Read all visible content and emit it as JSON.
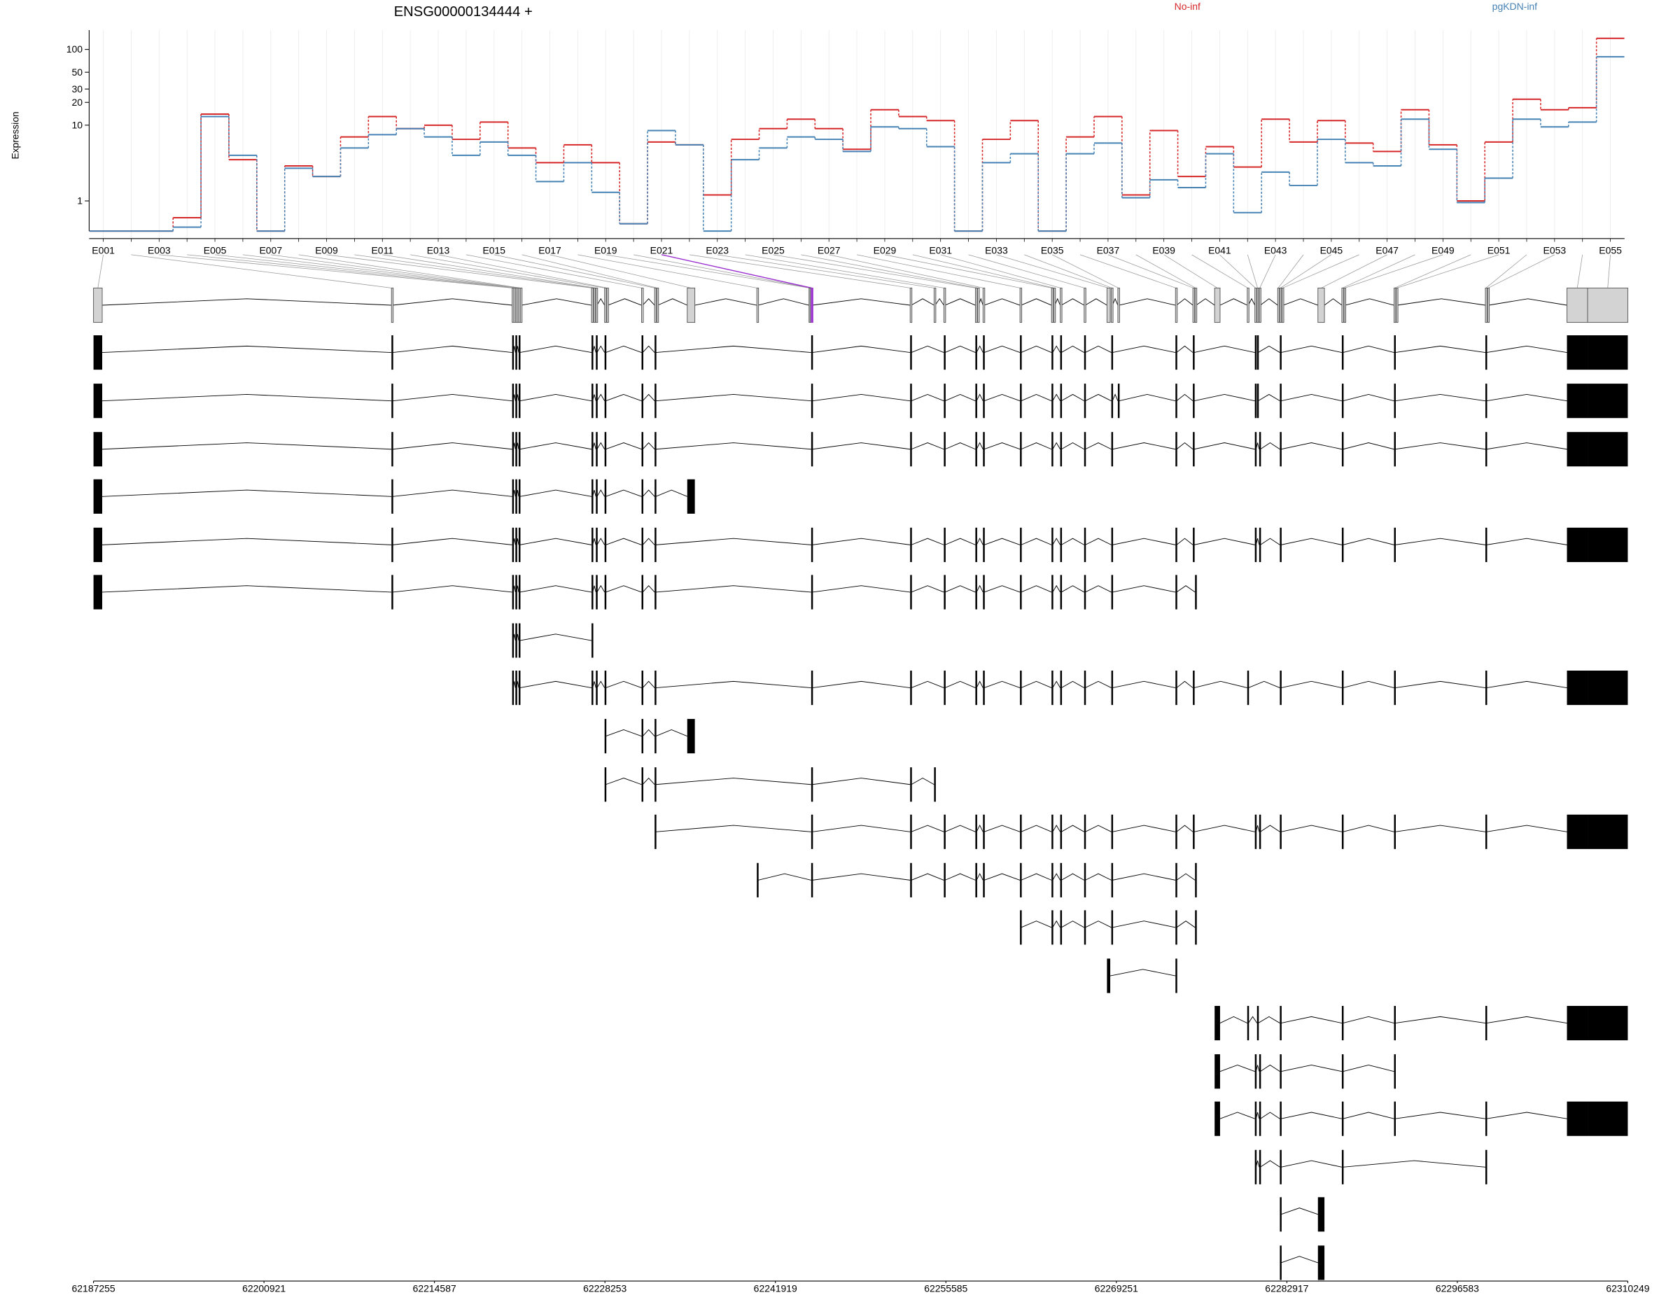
{
  "chart_data": {
    "type": "line",
    "title": "ENSG00000134444 +",
    "y_label": "Expression",
    "categories": [
      "E001",
      null,
      "E003",
      null,
      "E005",
      null,
      "E007",
      null,
      "E009",
      null,
      "E011",
      null,
      "E013",
      null,
      "E015",
      null,
      "E017",
      null,
      "E019",
      null,
      "E021",
      null,
      "E023",
      null,
      "E025",
      null,
      "E027",
      null,
      "E029",
      null,
      "E031",
      null,
      "E033",
      null,
      "E035",
      null,
      "E037",
      null,
      "E039",
      null,
      "E041",
      null,
      "E043",
      null,
      "E045",
      null,
      "E047",
      null,
      "E049",
      null,
      "E051",
      null,
      "E053",
      null,
      "E055"
    ],
    "series": [
      {
        "name": "No-inf",
        "color": "#d62728",
        "values": [
          0.4,
          0.4,
          0.4,
          0.6,
          14,
          3.5,
          0.4,
          2.9,
          2.1,
          7,
          13,
          9,
          10,
          6.5,
          11,
          5,
          3.2,
          5.5,
          3.2,
          0.5,
          6,
          5.5,
          1.2,
          6.5,
          9,
          12,
          9,
          4.8,
          16,
          13,
          11.5,
          0.4,
          6.5,
          11.5,
          0.4,
          7,
          13,
          1.2,
          8.5,
          2.1,
          5.2,
          2.8,
          12,
          6,
          11.5,
          5.8,
          4.5,
          16,
          5.5,
          1,
          6,
          22,
          16,
          17,
          140
        ]
      },
      {
        "name": "pgKDN-inf",
        "color": "#4682b4",
        "values": [
          0.4,
          0.4,
          0.4,
          0.45,
          13,
          4,
          0.4,
          2.7,
          2.1,
          5,
          7.5,
          9,
          7,
          4,
          6,
          4,
          1.8,
          3.2,
          1.3,
          0.5,
          8.5,
          5.5,
          0.4,
          3.5,
          5,
          7,
          6.5,
          4.5,
          9.5,
          9,
          5.2,
          0.4,
          3.2,
          4.2,
          0.4,
          4.2,
          5.8,
          1.1,
          1.9,
          1.5,
          4.2,
          0.7,
          2.4,
          1.6,
          6.5,
          3.2,
          2.9,
          12,
          4.8,
          0.95,
          2,
          12,
          9.5,
          11,
          80
        ]
      }
    ],
    "ylim": [
      0.4,
      180
    ],
    "yticks": [
      1,
      10,
      20,
      30,
      50,
      100
    ],
    "log_scale": true,
    "grid": true,
    "legend": "top",
    "highlight": 20,
    "highlight_color": "#9b30d0"
  },
  "gene_model": {
    "xlim": [
      62187255,
      62310249
    ],
    "xticks": [
      62187255,
      62200921,
      62214587,
      62228253,
      62241919,
      62255585,
      62269251,
      62282917,
      62296583,
      62310249
    ],
    "exon_color": "#d3d3d3",
    "transcript_color": "#000000",
    "exons": [
      [
        62187255,
        62187952
      ],
      [
        62211140,
        62211230
      ],
      [
        62220815,
        62220905
      ],
      [
        62220946,
        62221036
      ],
      [
        62221077,
        62221167
      ],
      [
        62221208,
        62221298
      ],
      [
        62221338,
        62221428
      ],
      [
        62221469,
        62221559
      ],
      [
        62227179,
        62227269
      ],
      [
        62227353,
        62227443
      ],
      [
        62227528,
        62227618
      ],
      [
        62228225,
        62228315
      ],
      [
        62228399,
        62228489
      ],
      [
        62231189,
        62231279
      ],
      [
        62232235,
        62232325
      ],
      [
        62232409,
        62232499
      ],
      [
        62234850,
        62235460
      ],
      [
        62240429,
        62240519
      ],
      [
        62244613,
        62244703
      ],
      [
        62244700,
        62244790
      ],
      [
        62244787,
        62244877
      ],
      [
        62252720,
        62252810
      ],
      [
        62254637,
        62254727
      ],
      [
        62255422,
        62255512
      ],
      [
        62257950,
        62258040
      ],
      [
        62258124,
        62258214
      ],
      [
        62258560,
        62258650
      ],
      [
        62261524,
        62261614
      ],
      [
        62264052,
        62264142
      ],
      [
        62264226,
        62264316
      ],
      [
        62264749,
        62264839
      ],
      [
        62266667,
        62266757
      ],
      [
        62268497,
        62268759
      ],
      [
        62268846,
        62268936
      ],
      [
        62269369,
        62269459
      ],
      [
        62273989,
        62274079
      ],
      [
        62275384,
        62275474
      ],
      [
        62275558,
        62275648
      ],
      [
        62277127,
        62277563
      ],
      [
        62279742,
        62279832
      ],
      [
        62280353,
        62280443
      ],
      [
        62280527,
        62280617
      ],
      [
        62280701,
        62280791
      ],
      [
        62282183,
        62282273
      ],
      [
        62282357,
        62282447
      ],
      [
        62282532,
        62282622
      ],
      [
        62285408,
        62285931
      ],
      [
        62287326,
        62287416
      ],
      [
        62287501,
        62287591
      ],
      [
        62291510,
        62291600
      ],
      [
        62291685,
        62291775
      ],
      [
        62298833,
        62298923
      ],
      [
        62299007,
        62299097
      ],
      [
        62305370,
        62307027
      ],
      [
        62307027,
        62310249
      ]
    ],
    "transcripts": [
      [
        0,
        1,
        2,
        4,
        6,
        8,
        10,
        11,
        13,
        14,
        20,
        21,
        23,
        24,
        26,
        27,
        28,
        30,
        31,
        33,
        35,
        36,
        40,
        41,
        44,
        47,
        49,
        51,
        53,
        54
      ],
      [
        0,
        1,
        2,
        4,
        6,
        8,
        10,
        11,
        13,
        14,
        20,
        21,
        23,
        24,
        26,
        27,
        28,
        30,
        31,
        33,
        34,
        35,
        36,
        40,
        41,
        44,
        47,
        49,
        51,
        53,
        54
      ],
      [
        0,
        1,
        2,
        4,
        6,
        8,
        10,
        11,
        13,
        14,
        20,
        21,
        23,
        24,
        26,
        27,
        28,
        30,
        31,
        33,
        35,
        36,
        40,
        42,
        44,
        47,
        49,
        51,
        53,
        54
      ],
      [
        0,
        1,
        2,
        4,
        6,
        8,
        10,
        11,
        13,
        14,
        16
      ],
      [
        0,
        1,
        2,
        4,
        6,
        8,
        10,
        11,
        13,
        14,
        20,
        21,
        23,
        24,
        26,
        27,
        28,
        30,
        31,
        33,
        35,
        36,
        40,
        42,
        44,
        47,
        49,
        51,
        53,
        54
      ],
      [
        0,
        1,
        2,
        4,
        6,
        8,
        10,
        11,
        13,
        14,
        20,
        21,
        23,
        24,
        26,
        27,
        28,
        30,
        31,
        33,
        35,
        37
      ],
      [
        2,
        4,
        6,
        8
      ],
      [
        2,
        4,
        6,
        8,
        10,
        11,
        13,
        14,
        20,
        21,
        23,
        24,
        26,
        27,
        28,
        30,
        31,
        33,
        35,
        36,
        39,
        44,
        47,
        49,
        51,
        53,
        54
      ],
      [
        11,
        13,
        14,
        16
      ],
      [
        11,
        13,
        14,
        20,
        21,
        22
      ],
      [
        14,
        20,
        21,
        23,
        24,
        26,
        27,
        28,
        30,
        31,
        33,
        35,
        36,
        40,
        42,
        44,
        47,
        49,
        51,
        53,
        54
      ],
      [
        17,
        20,
        21,
        23,
        24,
        26,
        27,
        28,
        30,
        31,
        33,
        35,
        37
      ],
      [
        27,
        28,
        30,
        31,
        33,
        35,
        37
      ],
      [
        32,
        35
      ],
      [
        38,
        39,
        41,
        44,
        47,
        49,
        51,
        53,
        54
      ],
      [
        38,
        40,
        42,
        44,
        47,
        49
      ],
      [
        38,
        40,
        42,
        44,
        47,
        49,
        51,
        53,
        54
      ],
      [
        40,
        42,
        44,
        47,
        51
      ],
      [
        44,
        46
      ],
      [
        44,
        46
      ]
    ]
  }
}
